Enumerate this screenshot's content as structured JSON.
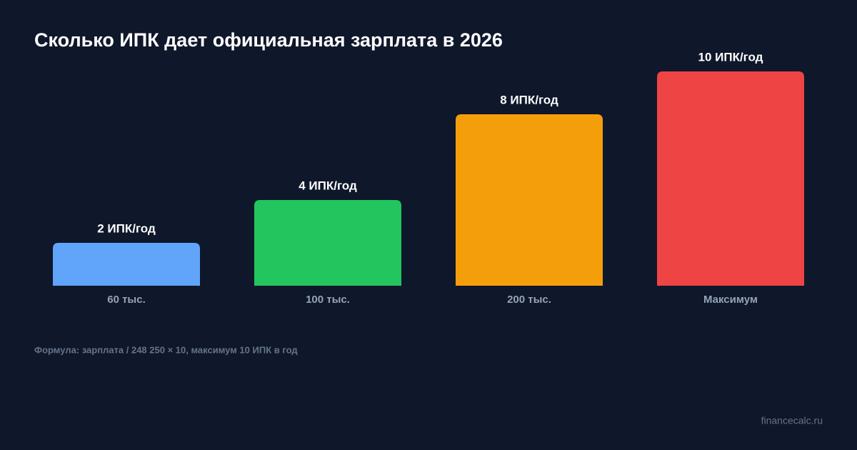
{
  "chart_data": {
    "type": "bar",
    "title": "Сколько ИПК дает официальная зарплата в 2026",
    "categories": [
      "60 тыс.",
      "100 тыс.",
      "200 тыс.",
      "Максимум"
    ],
    "values": [
      2,
      4,
      8,
      10
    ],
    "value_labels": [
      "2 ИПК/год",
      "4 ИПК/год",
      "8 ИПК/год",
      "10 ИПК/год"
    ],
    "colors": [
      "#60a5fa",
      "#22c55e",
      "#f59e0b",
      "#ef4444"
    ],
    "footnote": "Формула: зарплата / 248 250 × 10, максимум 10 ИПК в год",
    "source": "financecalc.ru"
  }
}
